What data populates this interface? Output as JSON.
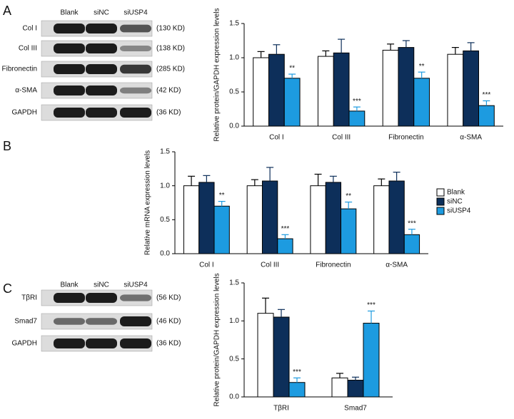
{
  "panel_labels": [
    "A",
    "B",
    "C"
  ],
  "blots": [
    {
      "lanes": [
        "Blank",
        "siNC",
        "siUSP4"
      ],
      "rows": [
        {
          "label": "Col I",
          "size": "(130 KD)"
        },
        {
          "label": "Col III",
          "size": "(138 KD)"
        },
        {
          "label": "Fibronectin",
          "size": "(285 KD)"
        },
        {
          "label": "α-SMA",
          "size": "(42 KD)"
        },
        {
          "label": "GAPDH",
          "size": "(36 KD)"
        }
      ]
    },
    {
      "lanes": [
        "Blank",
        "siNC",
        "siUSP4"
      ],
      "rows": [
        {
          "label": "TβRI",
          "size": "(56 KD)"
        },
        {
          "label": "Smad7",
          "size": "(46 KD)"
        },
        {
          "label": "GAPDH",
          "size": "(36 KD)"
        }
      ]
    }
  ],
  "chart_data": [
    {
      "type": "bar",
      "y_label": "Relative protein/GAPDH expression levels",
      "categories": [
        "Col I",
        "Col III",
        "Fibronectin",
        "α-SMA"
      ],
      "series": [
        {
          "color": "#ffffff",
          "values": [
            1.0,
            1.02,
            1.11,
            1.05
          ],
          "errors": [
            0.09,
            0.08,
            0.09,
            0.1
          ]
        },
        {
          "color": "#0d2f5a",
          "values": [
            1.05,
            1.07,
            1.15,
            1.1
          ],
          "errors": [
            0.14,
            0.2,
            0.1,
            0.12
          ]
        },
        {
          "color": "#1d9be0",
          "values": [
            0.7,
            0.22,
            0.7,
            0.3
          ],
          "errors": [
            0.06,
            0.06,
            0.09,
            0.07
          ],
          "annotations": [
            "**",
            "***",
            "**",
            "***"
          ]
        }
      ],
      "ylim": [
        0,
        1.5
      ],
      "yticks": [
        {
          "value": 0,
          "label": "0.0"
        },
        0.5,
        {
          "value": 1,
          "label": "1.0"
        },
        1.5
      ],
      "legend": false
    },
    {
      "type": "bar",
      "y_label": "Relative mRNA expression levels",
      "categories": [
        "Col I",
        "Col III",
        "Fibronectin",
        "α-SMA"
      ],
      "series": [
        {
          "name": "Blank",
          "color": "#ffffff",
          "values": [
            1.0,
            1.0,
            1.0,
            1.0
          ],
          "errors": [
            0.14,
            0.09,
            0.17,
            0.1
          ]
        },
        {
          "name": "siNC",
          "color": "#0d2f5a",
          "values": [
            1.05,
            1.07,
            1.05,
            1.07
          ],
          "errors": [
            0.1,
            0.2,
            0.09,
            0.13
          ]
        },
        {
          "name": "siUSP4",
          "color": "#1d9be0",
          "values": [
            0.7,
            0.22,
            0.66,
            0.28
          ],
          "errors": [
            0.07,
            0.06,
            0.1,
            0.08
          ],
          "annotations": [
            "**",
            "***",
            "**",
            "***"
          ]
        }
      ],
      "ylim": [
        0,
        1.5
      ],
      "yticks": [
        {
          "value": 0,
          "label": "0.0"
        },
        0.5,
        {
          "value": 1,
          "label": "1.0"
        },
        1.5
      ],
      "legend": true
    },
    {
      "type": "bar",
      "y_label": "Relative protein/GAPDH expression levels",
      "categories": [
        "TβRI",
        "Smad7"
      ],
      "series": [
        {
          "color": "#ffffff",
          "values": [
            1.1,
            0.25
          ],
          "errors": [
            0.2,
            0.06
          ]
        },
        {
          "color": "#0d2f5a",
          "values": [
            1.05,
            0.22
          ],
          "errors": [
            0.1,
            0.04
          ]
        },
        {
          "color": "#1d9be0",
          "values": [
            0.19,
            0.97
          ],
          "errors": [
            0.06,
            0.16
          ],
          "annotations": [
            "***",
            "***"
          ]
        }
      ],
      "ylim": [
        0,
        1.5
      ],
      "yticks": [
        {
          "value": 0,
          "label": "0.0"
        },
        0.5,
        {
          "value": 1,
          "label": "1.0"
        },
        1.5
      ],
      "legend": false
    }
  ]
}
